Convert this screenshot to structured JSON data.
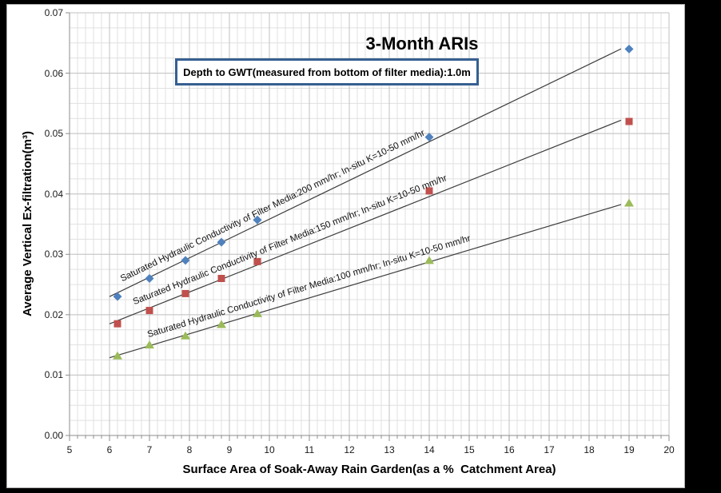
{
  "page": {
    "background_color": "#000000",
    "chart_background": "#FFFFFF"
  },
  "chart_data": {
    "type": "scatter",
    "title": "3-Month ARIs",
    "annotation": "Depth to GWT(measured from bottom of filter media):1.0m",
    "xlabel": "Surface Area of Soak-Away Rain Garden(as a %  Catchment Area)",
    "ylabel": "Average Vertical Ex-filtration(m³)",
    "xlim": [
      5,
      20
    ],
    "ylim": [
      0,
      0.07
    ],
    "x_major": 1,
    "x_minor": 0.2,
    "y_major": 0.01,
    "y_minor": 0.0025,
    "x_tick_labels": [
      "5",
      "6",
      "7",
      "8",
      "9",
      "10",
      "11",
      "12",
      "13",
      "14",
      "15",
      "16",
      "17",
      "18",
      "19",
      "20"
    ],
    "y_tick_labels": [
      "0.00",
      "0.01",
      "0.02",
      "0.03",
      "0.04",
      "0.05",
      "0.06",
      "0.07"
    ],
    "grid": true,
    "legend_position": "labels-along-lines",
    "colors": {
      "grid_minor": "#e1e1e1",
      "grid_major": "#c2c2c2",
      "axis": "#8e8e8e",
      "trendline": "#3d3d3d",
      "annotation_border": "#365F91"
    },
    "series": [
      {
        "name": "Saturated Hydraulic Conductivity of Filter Media:200 mm/hr; In-situ K=10-50 mm/hr",
        "marker": "diamond",
        "color": "#4F81BD",
        "x": [
          6.2,
          7.0,
          7.9,
          8.8,
          9.7,
          14.0,
          19.0
        ],
        "y": [
          0.023,
          0.026,
          0.029,
          0.032,
          0.0357,
          0.0494,
          0.064
        ],
        "trend_x_range": [
          6.0,
          18.8
        ],
        "label_anchor_x": 6.35,
        "label_lift": 6
      },
      {
        "name": "Saturated Hydraulic Conductivity of Filter Media:150 mm/hr; In-situ K=10-50 mm/hr",
        "marker": "square",
        "color": "#C0504D",
        "x": [
          6.2,
          7.0,
          7.9,
          8.8,
          9.7,
          14.0,
          19.0
        ],
        "y": [
          0.0185,
          0.0207,
          0.0235,
          0.026,
          0.0288,
          0.0405,
          0.052
        ],
        "trend_x_range": [
          6.0,
          18.8
        ],
        "label_anchor_x": 6.65,
        "label_lift": 6
      },
      {
        "name": "Saturated Hydraulic Conductivity of Filter Media:100 mm/hr; In-situ K=10-50 mm/hr",
        "marker": "triangle",
        "color": "#9BBB59",
        "x": [
          6.2,
          7.0,
          7.9,
          8.8,
          9.7,
          14.0,
          19.0
        ],
        "y": [
          0.0132,
          0.015,
          0.0165,
          0.0184,
          0.0202,
          0.029,
          0.0385
        ],
        "trend_x_range": [
          6.0,
          18.8
        ],
        "label_anchor_x": 7.0,
        "label_lift": 6
      }
    ]
  }
}
